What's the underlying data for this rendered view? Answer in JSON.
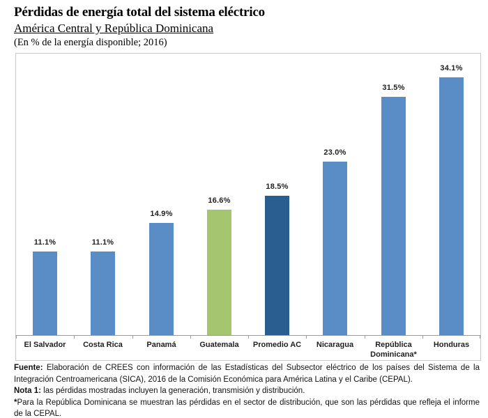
{
  "header": {
    "title": "Pérdidas de energía total del sistema eléctrico",
    "subtitle": "América Central y República Dominicana",
    "caption": "(En % de la energía disponible; 2016)"
  },
  "chart_data": {
    "type": "bar",
    "title": "Pérdidas de energía total del sistema eléctrico",
    "subtitle": "América Central y República Dominicana",
    "units": "(En % de la energía disponible; 2016)",
    "categories": [
      "El Salvador",
      "Costa Rica",
      "Panamá",
      "Guatemala",
      "Promedio AC",
      "Nicaragua",
      "República Dominicana*",
      "Honduras"
    ],
    "values": [
      11.1,
      11.1,
      14.9,
      16.6,
      18.5,
      23.0,
      31.5,
      34.1
    ],
    "value_labels": [
      "11.1%",
      "11.1%",
      "14.9%",
      "16.6%",
      "18.5%",
      "23.0%",
      "31.5%",
      "34.1%"
    ],
    "bar_colors": [
      "#5a8dc6",
      "#5a8dc6",
      "#5a8dc6",
      "#a6c571",
      "#2a5e91",
      "#5a8dc6",
      "#5a8dc6",
      "#5a8dc6"
    ],
    "xlabel": "",
    "ylabel": "",
    "ylim": [
      0,
      37.2
    ],
    "grid": false,
    "legend": false,
    "data_labels": true
  },
  "colors": {
    "bar_blue": "#5a8dc6",
    "bar_green": "#a6c571",
    "bar_dark_blue": "#2a5e91",
    "axis_line": "#9b9b9b",
    "chart_border": "#c9c9c9"
  },
  "footer": {
    "source_label": "Fuente:",
    "source_text": " Elaboración de CREES con información de las Estadísticas del Subsector eléctrico de los países del Sistema de la Integración Centroamericana (SICA), 2016 de la Comisión Económica para América Latina y el Caribe (CEPAL).",
    "note1_label": "Nota 1:",
    "note1_text": " las pérdidas mostradas incluyen la generación, transmisión y distribución.",
    "asterisk_label": "*",
    "asterisk_text": "Para la República Dominicana se muestran las pérdidas en el sector de distribución, que son las pérdidas que refleja el informe de la CEPAL."
  }
}
